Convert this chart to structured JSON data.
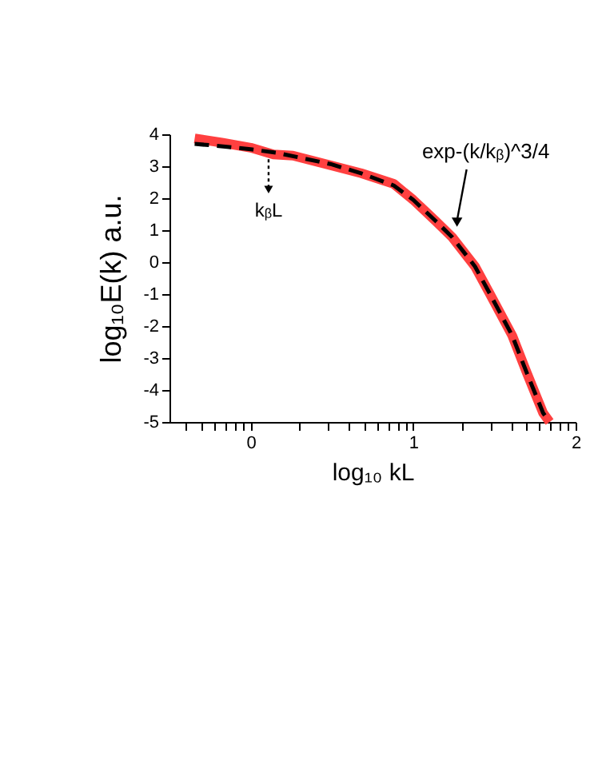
{
  "chart_data": {
    "type": "line",
    "xlabel": "log₁₀ kL",
    "ylabel": "log₁₀E(k)   a.u.",
    "xlim": [
      -0.5,
      2
    ],
    "ylim": [
      -5,
      4
    ],
    "xticks": [
      {
        "value": -0.398,
        "label": null
      },
      {
        "value": -0.301,
        "label": null
      },
      {
        "value": -0.222,
        "label": null
      },
      {
        "value": -0.155,
        "label": null
      },
      {
        "value": -0.097,
        "label": null
      },
      {
        "value": -0.046,
        "label": null
      },
      0,
      {
        "value": 0.301,
        "label": null
      },
      {
        "value": 0.477,
        "label": null
      },
      {
        "value": 0.602,
        "label": null
      },
      {
        "value": 0.699,
        "label": null
      },
      {
        "value": 0.778,
        "label": null
      },
      {
        "value": 0.845,
        "label": null
      },
      {
        "value": 0.903,
        "label": null
      },
      {
        "value": 0.954,
        "label": null
      },
      1,
      {
        "value": 1.301,
        "label": null
      },
      {
        "value": 1.477,
        "label": null
      },
      {
        "value": 1.602,
        "label": null
      },
      {
        "value": 1.699,
        "label": null
      },
      {
        "value": 1.778,
        "label": null
      },
      {
        "value": 1.845,
        "label": null
      },
      {
        "value": 1.903,
        "label": null
      },
      {
        "value": 1.954,
        "label": null
      },
      2
    ],
    "yticks": [
      -5,
      -4,
      -3,
      -2,
      -1,
      0,
      1,
      2,
      3,
      4
    ],
    "grid": false,
    "series": [
      {
        "color": "#ff4040",
        "line_style": "solid",
        "x": [
          -0.345,
          -0.17,
          0,
          0.14,
          0.26,
          0.49,
          0.68,
          0.88,
          1,
          1.14,
          1.24,
          1.38,
          1.47,
          1.61,
          1.7,
          1.8,
          1.84
        ],
        "values": [
          3.87,
          3.73,
          3.58,
          3.37,
          3.33,
          3.03,
          2.78,
          2.45,
          1.95,
          1.28,
          0.78,
          -0.13,
          -0.97,
          -2.3,
          -3.47,
          -4.72,
          -5
        ]
      },
      {
        "color": "#000000",
        "line_style": "dashed",
        "x": [
          -0.345,
          -0.17,
          0,
          0.16,
          0.32,
          0.49,
          0.68,
          0.88,
          1,
          1.14,
          1.24,
          1.38,
          1.47,
          1.61,
          1.7,
          1.8,
          1.84
        ],
        "values": [
          3.7,
          3.62,
          3.53,
          3.42,
          3.25,
          3.07,
          2.78,
          2.4,
          1.95,
          1.28,
          0.78,
          -0.13,
          -0.97,
          -2.3,
          -3.47,
          -4.72,
          -5
        ]
      }
    ],
    "annotations": [
      {
        "text": "exp-(k/kᵦ)^3/4",
        "x": 1.27,
        "y": 1.0
      },
      {
        "text": "kᵦL",
        "x": 0.11,
        "y": 3.37
      }
    ]
  }
}
